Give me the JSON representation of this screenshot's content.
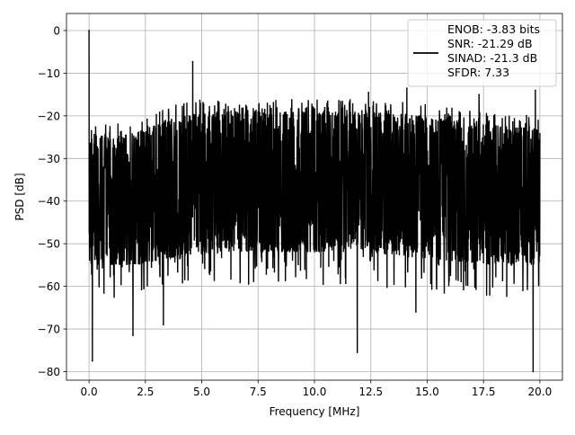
{
  "chart_data": {
    "type": "line",
    "title": "",
    "xlabel": "Frequency [MHz]",
    "ylabel": "PSD [dB]",
    "xlim": [
      -1.0,
      21.0
    ],
    "ylim": [
      -82,
      4
    ],
    "x_ticks": [
      0.0,
      2.5,
      5.0,
      7.5,
      10.0,
      12.5,
      15.0,
      17.5,
      20.0
    ],
    "x_tick_labels": [
      "0.0",
      "2.5",
      "5.0",
      "7.5",
      "10.0",
      "12.5",
      "15.0",
      "17.5",
      "20.0"
    ],
    "y_ticks": [
      0,
      -10,
      -20,
      -30,
      -40,
      -50,
      -60,
      -70,
      -80
    ],
    "y_tick_labels": [
      "0",
      "−10",
      "−20",
      "−30",
      "−40",
      "−50",
      "−60",
      "−70",
      "−80"
    ],
    "grid": true,
    "legend_position": "top-right",
    "series": [
      {
        "name": "ENOB: -3.83 bits\nSNR: -21.29 dB\nSINAD: -21.3 dB\nSFDR: 7.33",
        "legend_lines": [
          "ENOB: -3.83 bits",
          "SNR: -21.29 dB",
          "SINAD: -21.3 dB",
          "SFDR: 7.33"
        ],
        "color": "#000000",
        "x_range": [
          0.0,
          20.0
        ],
        "noise_floor_band_db": [
          -55,
          -24
        ],
        "envelope_top": [
          {
            "x": 0.0,
            "y": -24
          },
          {
            "x": 1.0,
            "y": -25
          },
          {
            "x": 2.0,
            "y": -24
          },
          {
            "x": 3.0,
            "y": -22
          },
          {
            "x": 4.0,
            "y": -20
          },
          {
            "x": 5.0,
            "y": -19
          },
          {
            "x": 6.0,
            "y": -19
          },
          {
            "x": 7.5,
            "y": -19
          },
          {
            "x": 10.0,
            "y": -19
          },
          {
            "x": 12.5,
            "y": -19
          },
          {
            "x": 15.0,
            "y": -20
          },
          {
            "x": 17.5,
            "y": -22
          },
          {
            "x": 20.0,
            "y": -23
          }
        ],
        "envelope_bottom": [
          {
            "x": 0.0,
            "y": -55
          },
          {
            "x": 2.0,
            "y": -55
          },
          {
            "x": 4.0,
            "y": -53
          },
          {
            "x": 6.0,
            "y": -52
          },
          {
            "x": 8.0,
            "y": -52
          },
          {
            "x": 10.0,
            "y": -52
          },
          {
            "x": 12.0,
            "y": -52
          },
          {
            "x": 14.0,
            "y": -53
          },
          {
            "x": 16.0,
            "y": -54
          },
          {
            "x": 18.0,
            "y": -55
          },
          {
            "x": 20.0,
            "y": -55
          }
        ],
        "peaks": [
          {
            "x": 0.0,
            "y": 0.0
          },
          {
            "x": 4.6,
            "y": -7.3
          },
          {
            "x": 14.1,
            "y": -13.5
          },
          {
            "x": 19.8,
            "y": -14.0
          },
          {
            "x": 12.4,
            "y": -14.5
          },
          {
            "x": 17.3,
            "y": -15.0
          }
        ],
        "dips": [
          {
            "x": 0.15,
            "y": -77.5
          },
          {
            "x": 1.95,
            "y": -71.5
          },
          {
            "x": 3.3,
            "y": -69.0
          },
          {
            "x": 11.9,
            "y": -75.5
          },
          {
            "x": 19.7,
            "y": -80.0
          },
          {
            "x": 14.5,
            "y": -66.0
          }
        ]
      }
    ]
  }
}
